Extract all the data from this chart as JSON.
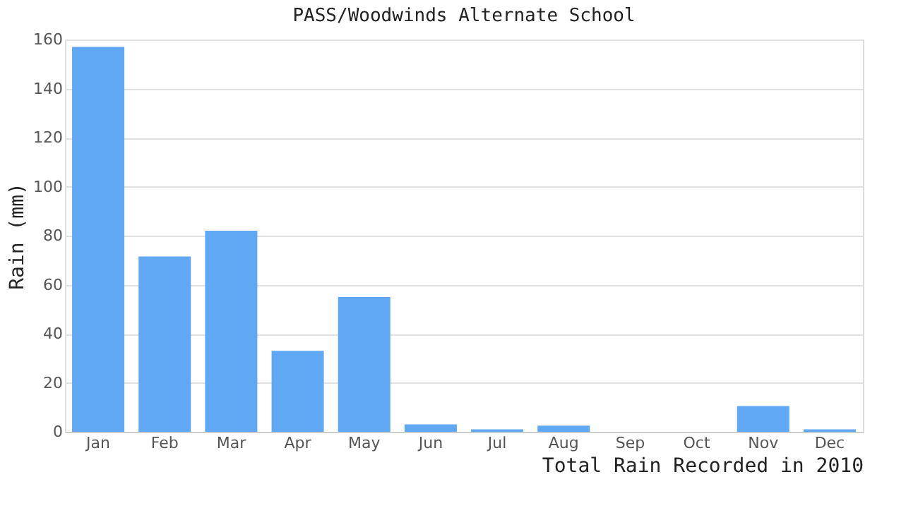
{
  "chart_data": {
    "type": "bar",
    "title": "PASS/Woodwinds Alternate School",
    "xlabel": "Total Rain Recorded in 2010",
    "ylabel": "Rain (mm)",
    "categories": [
      "Jan",
      "Feb",
      "Mar",
      "Apr",
      "May",
      "Jun",
      "Jul",
      "Aug",
      "Sep",
      "Oct",
      "Nov",
      "Dec"
    ],
    "values": [
      157,
      71.5,
      82,
      33,
      55,
      3,
      1,
      2.5,
      0,
      0,
      10.5,
      1
    ],
    "color": "#60a8f4",
    "ylim": [
      0,
      160
    ],
    "yticks": [
      0,
      20,
      40,
      60,
      80,
      100,
      120,
      140,
      160
    ],
    "grid": "y"
  }
}
